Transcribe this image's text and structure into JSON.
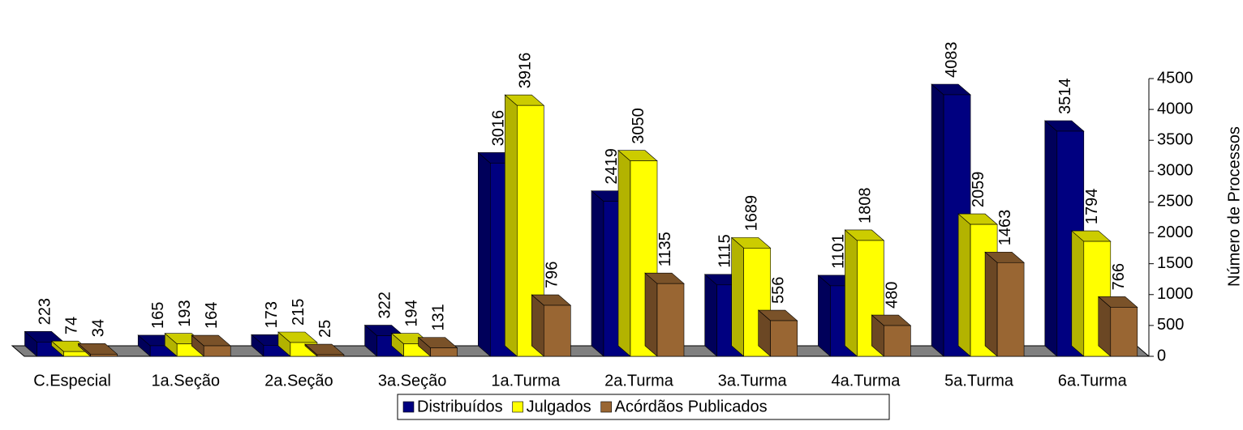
{
  "chart_data": {
    "type": "bar3d",
    "y_label": "Número de Processos",
    "categories": [
      "C.Especial",
      "1a.Seção",
      "2a.Seção",
      "3a.Seção",
      "1a.Turma",
      "2a.Turma",
      "3a.Turma",
      "4a.Turma",
      "5a.Turma",
      "6a.Turma"
    ],
    "series": [
      {
        "name": "Distribuídos",
        "color": "#000080",
        "values": [
          223,
          165,
          173,
          322,
          3016,
          2419,
          1115,
          1101,
          4083,
          3514
        ]
      },
      {
        "name": "Julgados",
        "color": "#ffff00",
        "values": [
          74,
          193,
          215,
          194,
          3916,
          3050,
          1689,
          1808,
          2059,
          1794
        ]
      },
      {
        "name": "Acórdãos Publicados",
        "color": "#996633",
        "values": [
          34,
          164,
          25,
          131,
          796,
          1135,
          556,
          480,
          1463,
          766
        ]
      }
    ],
    "ylim": [
      0,
      4500
    ],
    "yticks": [
      0,
      500,
      1000,
      1500,
      2000,
      2500,
      3000,
      3500,
      4000,
      4500
    ],
    "legend": "bottom"
  }
}
